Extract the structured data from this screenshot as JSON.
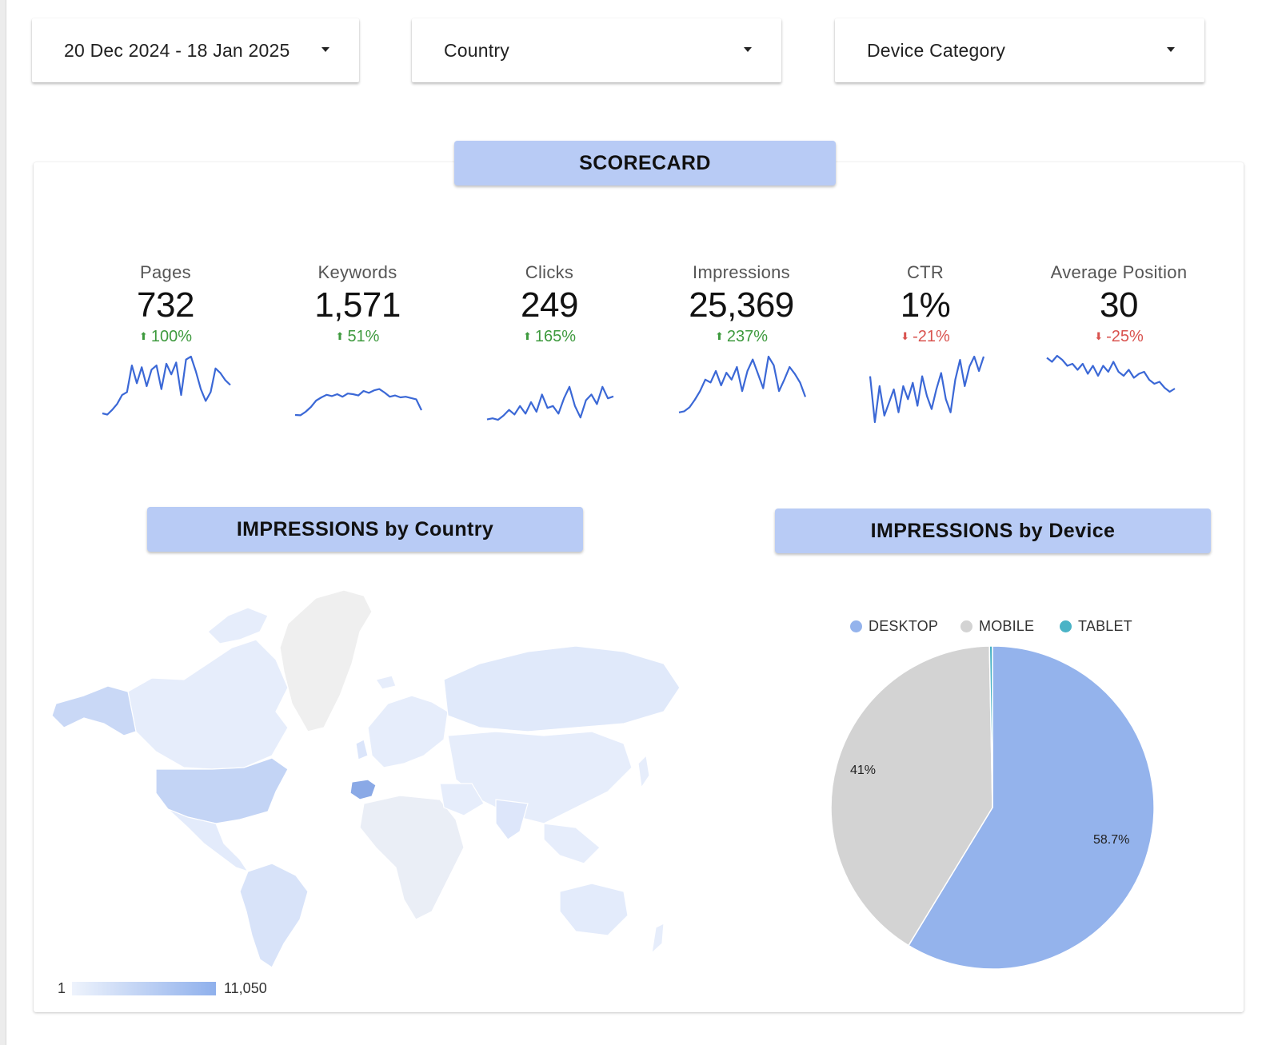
{
  "filters": {
    "date_range": "20 Dec 2024 - 18 Jan 2025",
    "country": "Country",
    "device_category": "Device Category"
  },
  "scorecard": {
    "title": "SCORECARD",
    "metrics": [
      {
        "label": "Pages",
        "value": "732",
        "delta": "100%",
        "direction": "up",
        "trend": [
          0.04,
          0.02,
          0.1,
          0.2,
          0.35,
          0.4,
          0.85,
          0.55,
          0.82,
          0.5,
          0.78,
          0.85,
          0.45,
          0.88,
          0.7,
          0.9,
          0.35,
          0.95,
          1.0,
          0.75,
          0.45,
          0.25,
          0.4,
          0.8,
          0.72,
          0.6,
          0.52
        ]
      },
      {
        "label": "Keywords",
        "value": "1,571",
        "delta": "51%",
        "direction": "up",
        "trend": [
          0.05,
          0.04,
          0.15,
          0.3,
          0.5,
          0.6,
          0.68,
          0.64,
          0.7,
          0.62,
          0.72,
          0.7,
          0.66,
          0.8,
          0.74,
          0.82,
          0.86,
          0.75,
          0.62,
          0.66,
          0.6,
          0.62,
          0.58,
          0.54,
          0.2
        ]
      },
      {
        "label": "Clicks",
        "value": "249",
        "delta": "165%",
        "direction": "up",
        "trend": [
          0.05,
          0.08,
          0.04,
          0.15,
          0.3,
          0.18,
          0.4,
          0.2,
          0.5,
          0.25,
          0.7,
          0.35,
          0.4,
          0.2,
          0.6,
          0.9,
          0.4,
          0.1,
          0.55,
          0.7,
          0.45,
          0.9,
          0.6,
          0.65
        ]
      },
      {
        "label": "Impressions",
        "value": "25,369",
        "delta": "237%",
        "direction": "up",
        "trend": [
          0.03,
          0.05,
          0.12,
          0.25,
          0.4,
          0.6,
          0.55,
          0.75,
          0.5,
          0.72,
          0.6,
          0.82,
          0.4,
          0.75,
          0.95,
          0.7,
          0.45,
          1.0,
          0.85,
          0.4,
          0.6,
          0.82,
          0.7,
          0.55,
          0.3
        ]
      },
      {
        "label": "CTR",
        "value": "1%",
        "delta": "-21%",
        "direction": "down",
        "trend": [
          0.7,
          0.0,
          0.55,
          0.1,
          0.3,
          0.5,
          0.15,
          0.55,
          0.35,
          0.6,
          0.25,
          0.7,
          0.4,
          0.2,
          0.5,
          0.75,
          0.35,
          0.15,
          0.65,
          0.95,
          0.55,
          0.85,
          1.0,
          0.78,
          1.0
        ]
      },
      {
        "label": "Average Position",
        "value": "30",
        "delta": "-25%",
        "direction": "down",
        "trend": [
          0.95,
          0.85,
          1.0,
          0.9,
          0.75,
          0.8,
          0.65,
          0.8,
          0.55,
          0.75,
          0.5,
          0.75,
          0.6,
          0.85,
          0.6,
          0.5,
          0.65,
          0.45,
          0.55,
          0.6,
          0.4,
          0.3,
          0.35,
          0.2,
          0.1,
          0.18
        ]
      }
    ]
  },
  "map_panel": {
    "title": "IMPRESSIONS by Country",
    "scale_min": "1",
    "scale_max": "11,050",
    "color_low": "#eef3fc",
    "color_high": "#8fb0ec"
  },
  "device_panel": {
    "title": "IMPRESSIONS by Device"
  },
  "chart_data": {
    "type": "pie",
    "categories": [
      "DESKTOP",
      "MOBILE",
      "TABLET"
    ],
    "values": [
      58.7,
      41,
      0.3
    ],
    "labels": [
      "58.7%",
      "41%",
      ""
    ],
    "colors": [
      "#94b3ec",
      "#d3d3d3",
      "#4ab3c6"
    ],
    "legend_position": "top"
  },
  "colors": {
    "banner": "#b8cbf5",
    "sparkline": "#3b68d6",
    "positive": "#3e9a3e",
    "negative": "#d9534f"
  }
}
